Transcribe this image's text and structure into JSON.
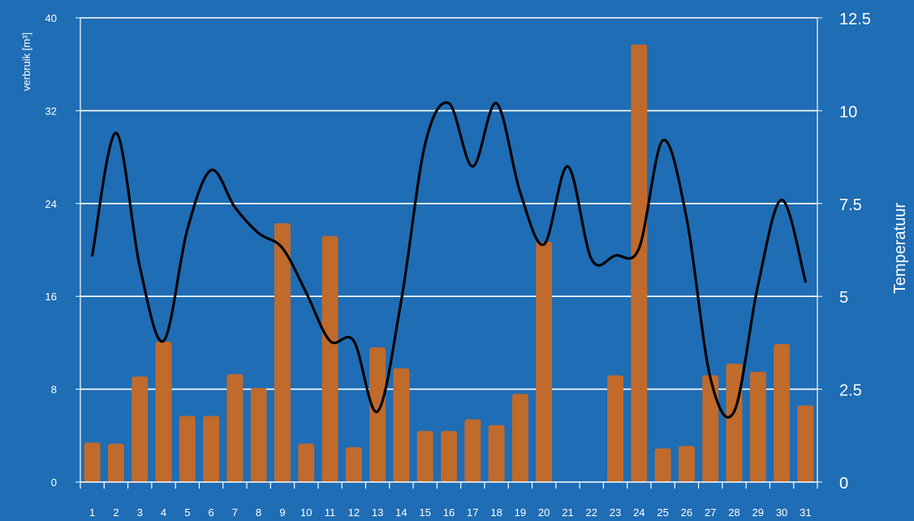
{
  "chart_data": {
    "type": "bar",
    "x": [
      "1",
      "2",
      "3",
      "4",
      "5",
      "6",
      "7",
      "8",
      "9",
      "10",
      "11",
      "12",
      "13",
      "14",
      "15",
      "16",
      "17",
      "18",
      "19",
      "20",
      "21",
      "22",
      "23",
      "24",
      "25",
      "26",
      "27",
      "28",
      "29",
      "30",
      "31"
    ],
    "ylabel": "verbruik [m³]",
    "y2label": "Temperatuur",
    "ylim": [
      0,
      40
    ],
    "y2lim": [
      0,
      12.5
    ],
    "yticks": [
      "0",
      "8",
      "16",
      "24",
      "32",
      "40"
    ],
    "y2ticks": [
      "0",
      "2.5",
      "5",
      "7.5",
      "10",
      "12.5"
    ],
    "grid": true,
    "series": [
      {
        "type": "bar",
        "axis": "left",
        "values": [
          3.4,
          3.3,
          9.1,
          12.1,
          5.7,
          5.7,
          9.3,
          8.1,
          22.3,
          3.3,
          21.2,
          3.0,
          11.6,
          9.8,
          4.4,
          4.4,
          5.4,
          4.9,
          7.6,
          20.7,
          null,
          null,
          9.2,
          37.7,
          2.9,
          3.1,
          9.2,
          10.2,
          9.5,
          11.9,
          6.6
        ],
        "color": "#c06a2c"
      },
      {
        "type": "line",
        "axis": "right",
        "values": [
          6.1,
          9.4,
          5.8,
          3.8,
          6.8,
          8.4,
          7.4,
          6.7,
          6.3,
          5.1,
          3.8,
          3.8,
          1.9,
          4.9,
          9.1,
          10.2,
          8.5,
          10.2,
          7.8,
          6.4,
          8.5,
          6.0,
          6.1,
          6.3,
          9.2,
          7.1,
          2.8,
          1.9,
          5.3,
          7.6,
          5.4
        ],
        "color": "#000000"
      }
    ]
  }
}
